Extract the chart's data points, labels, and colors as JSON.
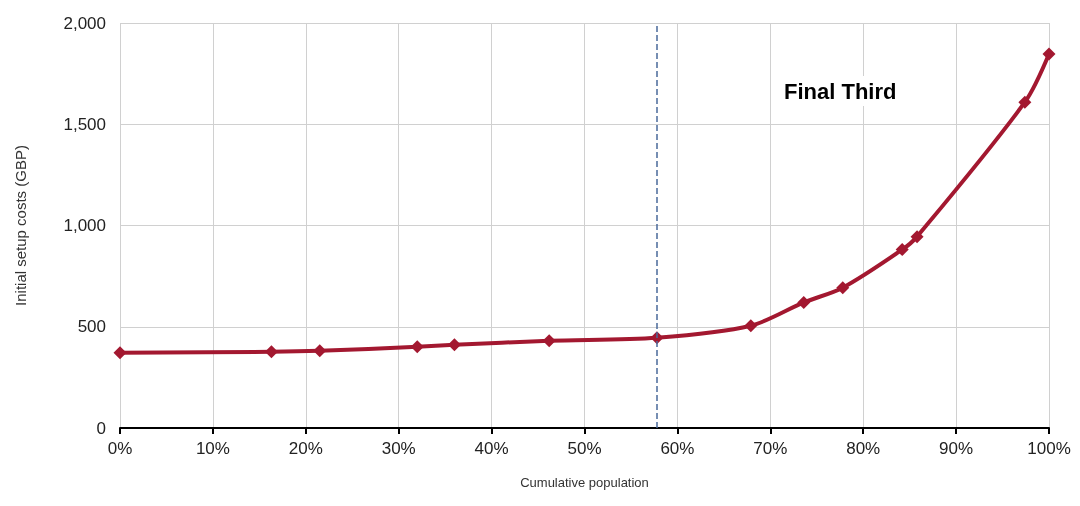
{
  "chart_data": {
    "type": "line",
    "xlabel": "Cumulative population",
    "ylabel": "Initial setup costs (GBP)",
    "x": [
      0,
      16.3,
      21.5,
      32.0,
      36.0,
      46.2,
      57.8,
      67.9,
      73.6,
      77.8,
      84.2,
      85.8,
      97.4,
      100
    ],
    "series": [
      {
        "color": "#a31830",
        "values": [
          371,
          376,
          381,
          401,
          411,
          431,
          446,
          505,
          620,
          693,
          881,
          945,
          1609,
          1847
        ]
      }
    ],
    "xlim": [
      0,
      100
    ],
    "xticks": [
      {
        "value": 0,
        "label": "0%"
      },
      {
        "value": 10,
        "label": "10%"
      },
      {
        "value": 20,
        "label": "20%"
      },
      {
        "value": 30,
        "label": "30%"
      },
      {
        "value": 40,
        "label": "40%"
      },
      {
        "value": 50,
        "label": "50%"
      },
      {
        "value": 60,
        "label": "60%"
      },
      {
        "value": 70,
        "label": "70%"
      },
      {
        "value": 80,
        "label": "80%"
      },
      {
        "value": 90,
        "label": "90%"
      },
      {
        "value": 100,
        "label": "100%"
      }
    ],
    "ylim": [
      0,
      2000
    ],
    "yticks": [
      0,
      {
        "value": 500,
        "label": "500"
      },
      {
        "value": 1000,
        "label": "1,000"
      },
      {
        "value": 1500,
        "label": "1,500"
      },
      {
        "value": 2000,
        "label": "2,000"
      }
    ],
    "grid": true,
    "marker": "diamond",
    "line_style": "solid",
    "ref_lines": [
      {
        "axis": "x",
        "value": 57.8,
        "color": "#4a6a9a",
        "line_style": "dashed"
      }
    ],
    "annotations": [
      "Final Third"
    ]
  }
}
